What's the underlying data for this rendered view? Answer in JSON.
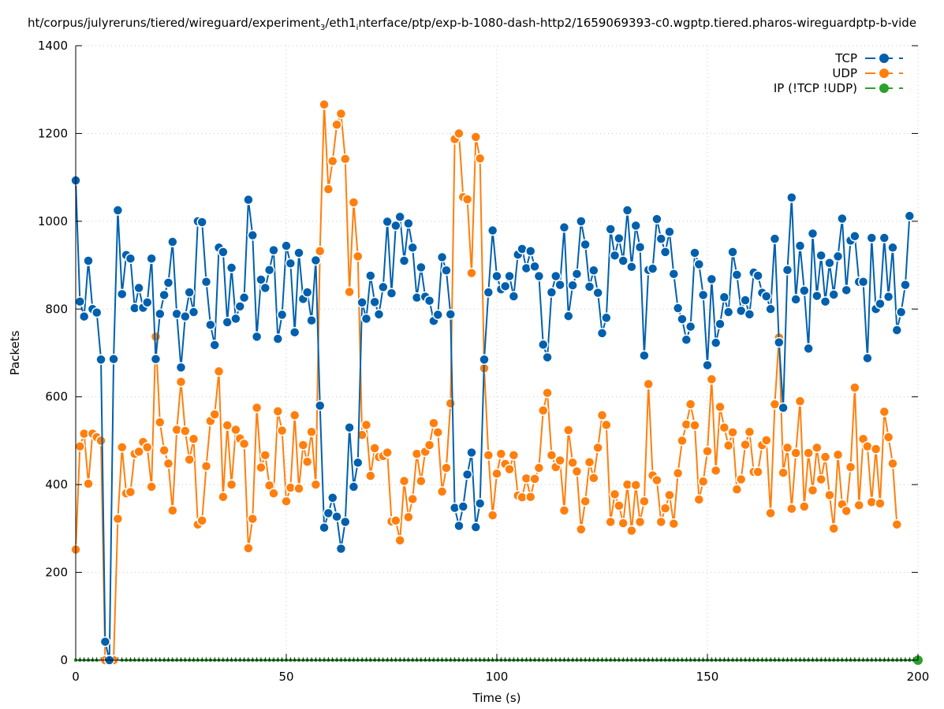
{
  "chart_data": {
    "type": "line",
    "title_parts": [
      "ht/corpus/julyreruns/tiered/wireguard/experiment",
      "3",
      "/eth1",
      "i",
      "nterface/ptp/exp-b-1080-dash-http2/1659069393-c0.wgptp.tiered.pharos-wireguardptp-b-vide"
    ],
    "xlabel": "Time (s)",
    "ylabel": "Packets",
    "xlim": [
      0,
      200
    ],
    "ylim": [
      0,
      1400
    ],
    "xticks": [
      0,
      50,
      100,
      150,
      200
    ],
    "yticks": [
      0,
      200,
      400,
      600,
      800,
      1000,
      1200,
      1400
    ],
    "grid": true,
    "legend_position": "top-right",
    "series": [
      {
        "name": "TCP",
        "legend_label": "TCP",
        "color": "#0060ad",
        "x_start": 0,
        "x_step": 1,
        "values": [
          1093,
          817,
          783,
          910,
          800,
          792,
          685,
          42,
          0,
          686,
          1025,
          834,
          923,
          915,
          802,
          848,
          803,
          815,
          915,
          686,
          789,
          832,
          860,
          953,
          789,
          667,
          783,
          838,
          793,
          1000,
          998,
          862,
          764,
          718,
          940,
          930,
          770,
          894,
          778,
          806,
          826,
          1049,
          968,
          737,
          867,
          848,
          889,
          934,
          732,
          787,
          944,
          904,
          747,
          928,
          823,
          838,
          774,
          911,
          580,
          302,
          335,
          370,
          327,
          254,
          315,
          530,
          395,
          450,
          815,
          778,
          876,
          816,
          788,
          850,
          999,
          836,
          990,
          1010,
          910,
          995,
          940,
          826,
          895,
          828,
          819,
          773,
          787,
          918,
          888,
          788,
          347,
          306,
          350,
          423,
          473,
          303,
          357,
          685,
          838,
          979,
          875,
          845,
          852,
          875,
          829,
          924,
          937,
          893,
          932,
          897,
          875,
          719,
          690,
          838,
          875,
          855,
          986,
          784,
          854,
          880,
          1000,
          947,
          851,
          888,
          837,
          745,
          780,
          982,
          922,
          961,
          910,
          1025,
          896,
          990,
          941,
          694,
          889,
          892,
          1005,
          960,
          930,
          976,
          880,
          802,
          777,
          730,
          760,
          928,
          902,
          832,
          672,
          868,
          723,
          766,
          827,
          793,
          930,
          878,
          796,
          820,
          788,
          883,
          876,
          837,
          829,
          800,
          960,
          724,
          575,
          889,
          1054,
          822,
          944,
          842,
          710,
          972,
          830,
          922,
          817,
          905,
          833,
          920,
          1006,
          843,
          956,
          966,
          862,
          862,
          688,
          962,
          800,
          812,
          962,
          828,
          940,
          752,
          793,
          855,
          1012
        ]
      },
      {
        "name": "UDP",
        "legend_label": "UDP",
        "color": "#ff7f0e",
        "x_start": 0,
        "x_step": 1,
        "values": [
          252,
          487,
          516,
          402,
          516,
          508,
          500,
          0,
          0,
          0,
          322,
          485,
          380,
          383,
          470,
          475,
          497,
          485,
          395,
          737,
          542,
          478,
          448,
          341,
          525,
          634,
          522,
          457,
          504,
          309,
          318,
          442,
          545,
          560,
          658,
          372,
          535,
          400,
          525,
          505,
          493,
          255,
          322,
          575,
          439,
          467,
          398,
          380,
          567,
          523,
          362,
          393,
          558,
          391,
          490,
          452,
          520,
          400,
          932,
          1266,
          1073,
          1137,
          1220,
          1245,
          1142,
          839,
          1043,
          920,
          513,
          536,
          420,
          483,
          463,
          465,
          473,
          316,
          318,
          273,
          408,
          326,
          367,
          470,
          408,
          475,
          490,
          540,
          519,
          384,
          438,
          585,
          1187,
          1200,
          1055,
          1050,
          882,
          1192,
          1143,
          665,
          467,
          330,
          425,
          470,
          447,
          435,
          467,
          375,
          371,
          414,
          372,
          413,
          438,
          569,
          609,
          467,
          440,
          455,
          341,
          524,
          450,
          430,
          298,
          362,
          451,
          415,
          484,
          558,
          536,
          315,
          378,
          352,
          312,
          400,
          295,
          399,
          315,
          362,
          629,
          421,
          410,
          315,
          346,
          376,
          311,
          426,
          500,
          537,
          583,
          535,
          366,
          407,
          476,
          640,
          432,
          577,
          530,
          489,
          519,
          389,
          412,
          491,
          520,
          429,
          429,
          490,
          501,
          335,
          583,
          735,
          427,
          484,
          345,
          472,
          590,
          350,
          472,
          387,
          484,
          412,
          463,
          376,
          300,
          468,
          355,
          340,
          440,
          621,
          353,
          504,
          487,
          360,
          481,
          357,
          566,
          508,
          448,
          309
        ]
      },
      {
        "name": "IP (!TCP  !UDP)",
        "legend_label": "IP (!TCP  !UDP)",
        "color": "#2ca02c",
        "x_start": 0,
        "x_step": 1,
        "constant_value": 0,
        "count": 201
      }
    ]
  }
}
